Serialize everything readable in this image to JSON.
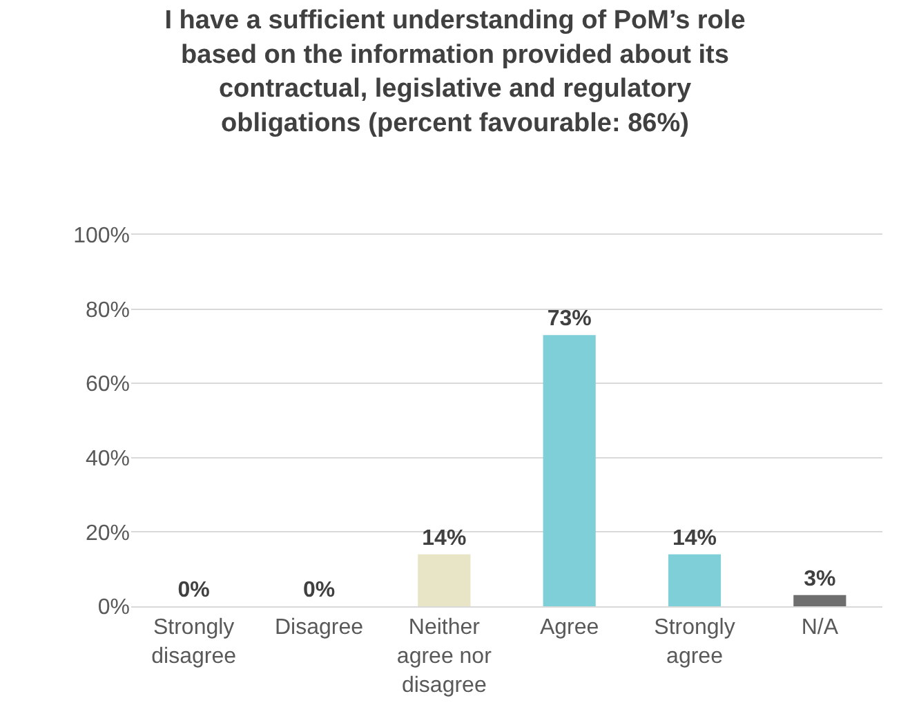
{
  "chart_data": {
    "type": "bar",
    "title": "I have a sufficient understanding of PoM’s role based on the information provided about its contractual, legislative and regulatory obligations (percent favourable: 86%)",
    "categories": [
      "Strongly disagree",
      "Disagree",
      "Neither agree nor disagree",
      "Agree",
      "Strongly agree",
      "N/A"
    ],
    "values": [
      0,
      0,
      14,
      73,
      14,
      3
    ],
    "colors": [
      "#7fcfd8",
      "#7fcfd8",
      "#e8e4c6",
      "#7fcfd8",
      "#7fcfd8",
      "#6e6e6e"
    ],
    "value_labels": [
      "0%",
      "0%",
      "14%",
      "73%",
      "14%",
      "3%"
    ],
    "ylim": [
      0,
      100
    ],
    "yticks": [
      {
        "value": 0,
        "label": "0%"
      },
      {
        "value": 20,
        "label": "20%"
      },
      {
        "value": 40,
        "label": "40%"
      },
      {
        "value": 60,
        "label": "60%"
      },
      {
        "value": 80,
        "label": "80%"
      },
      {
        "value": 100,
        "label": "100%"
      }
    ],
    "grid": "y"
  }
}
